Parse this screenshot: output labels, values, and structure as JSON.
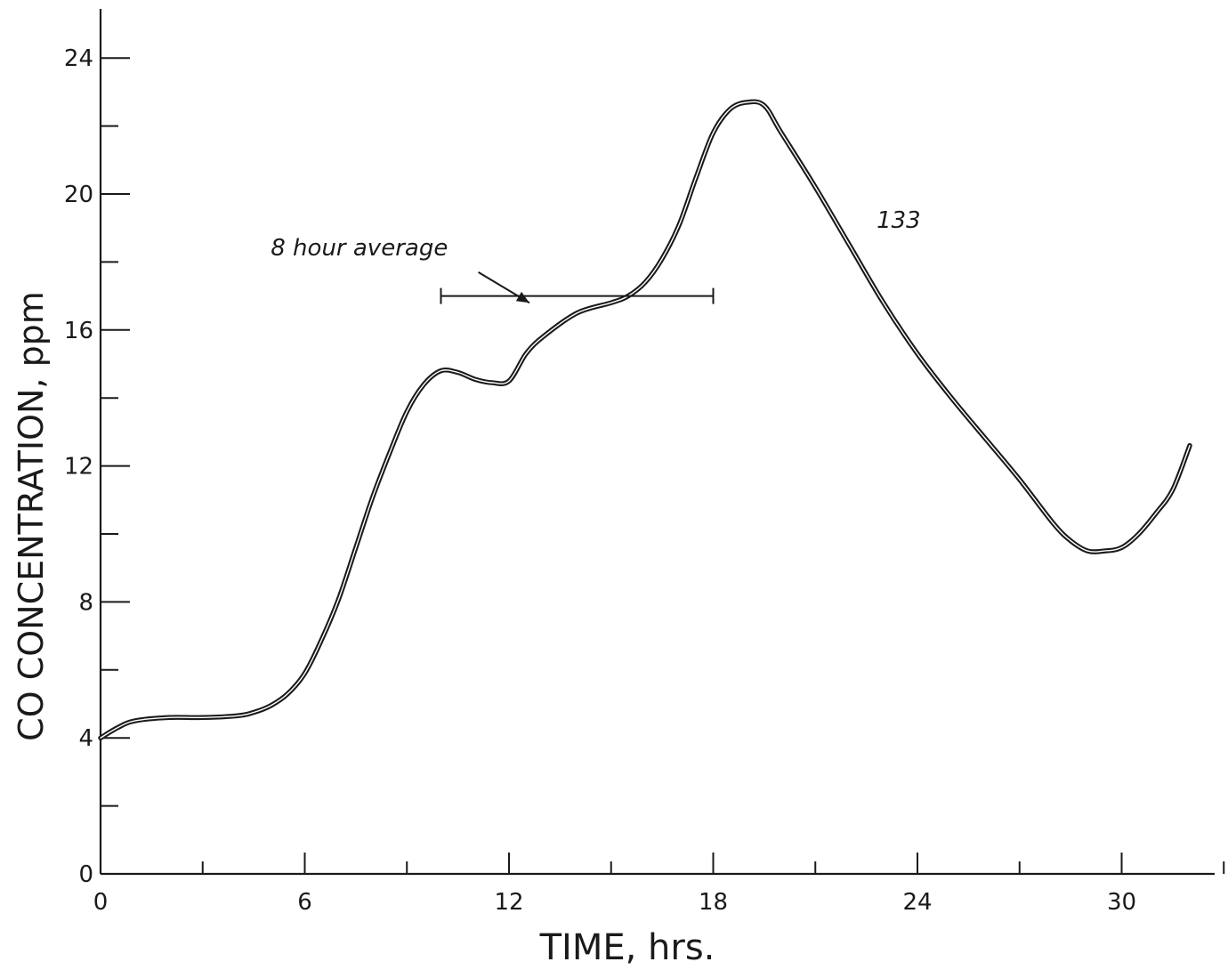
{
  "chart_data": {
    "type": "line",
    "xlabel": "TIME, hrs.",
    "ylabel": "CO CONCENTRATION, ppm",
    "xlim": [
      0,
      33
    ],
    "ylim": [
      0,
      24
    ],
    "x_ticks_major": [
      0,
      6,
      12,
      18,
      24,
      30
    ],
    "x_ticks_minor": [
      3,
      9,
      15,
      21,
      27,
      33
    ],
    "y_ticks_major": [
      0,
      4,
      8,
      12,
      16,
      20,
      24
    ],
    "y_ticks_minor": [
      2,
      6,
      10,
      14,
      18,
      22
    ],
    "grid": false,
    "series": [
      {
        "name": "",
        "x": [
          0,
          0.5,
          1,
          2,
          3,
          4,
          4.5,
          5,
          5.5,
          6,
          6.5,
          7,
          7.5,
          8,
          8.5,
          9,
          9.5,
          10,
          10.5,
          11,
          11.5,
          12,
          12.5,
          13,
          14,
          15,
          15.5,
          16,
          16.5,
          17,
          17.5,
          18,
          18.5,
          19,
          19.5,
          20,
          21,
          22,
          23,
          24,
          25,
          26,
          27,
          28,
          28.5,
          29,
          29.5,
          30,
          30.5,
          31,
          31.5,
          32
        ],
        "y": [
          4.0,
          4.3,
          4.5,
          4.6,
          4.6,
          4.65,
          4.75,
          4.95,
          5.3,
          5.9,
          6.9,
          8.1,
          9.6,
          11.1,
          12.4,
          13.6,
          14.4,
          14.8,
          14.75,
          14.55,
          14.45,
          14.5,
          15.3,
          15.8,
          16.5,
          16.8,
          17.0,
          17.4,
          18.1,
          19.1,
          20.5,
          21.8,
          22.5,
          22.7,
          22.6,
          21.8,
          20.2,
          18.5,
          16.8,
          15.3,
          14.0,
          12.8,
          11.6,
          10.3,
          9.8,
          9.5,
          9.5,
          9.6,
          10.0,
          10.6,
          11.3,
          12.6
        ]
      }
    ],
    "annotations": {
      "curve_label": {
        "text": "133",
        "x": 22.8,
        "y": 19.0
      },
      "average_label": {
        "text": "8 hour average",
        "x": 5.0,
        "y": 18.2
      },
      "average_bar": {
        "x_start": 10.0,
        "x_end": 18.0,
        "y": 17.0
      },
      "arrow_from": {
        "x": 11.1,
        "y": 17.7
      },
      "arrow_to": {
        "x": 12.6,
        "y": 16.8
      }
    }
  }
}
